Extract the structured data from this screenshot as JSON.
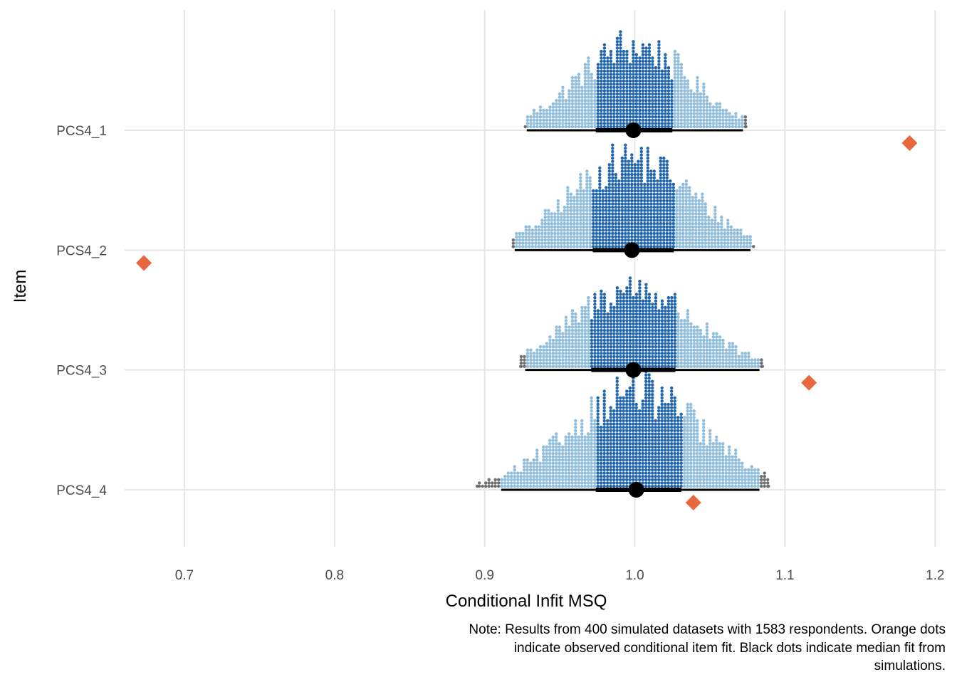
{
  "chart_data": {
    "type": "dotplot-interval",
    "xlabel": "Conditional Infit MSQ",
    "ylabel": "Item",
    "xlim": [
      0.65,
      1.21
    ],
    "x_ticks": [
      "0.7",
      "0.8",
      "0.9",
      "1.0",
      "1.1",
      "1.2"
    ],
    "x_tick_values": [
      0.7,
      0.8,
      0.9,
      1.0,
      1.1,
      1.2
    ],
    "categories": [
      "PCS4_1",
      "PCS4_2",
      "PCS4_3",
      "PCS4_4"
    ],
    "grid": true,
    "caption_lines": [
      "Note: Results from 400 simulated datasets with 1583 respondents. Orange dots",
      "indicate observed conditional item fit. Black dots indicate median fit from",
      "simulations."
    ],
    "colors": {
      "inner_dots": "#2166ac",
      "outer_dots": "#8fbddc",
      "extreme_dots": "#6e6e6e",
      "observed": "#e8673c",
      "median": "#000000",
      "grid": "#e6e6e6"
    },
    "items": [
      {
        "name": "PCS4_1",
        "median": 0.999,
        "interval_inner": [
          0.974,
          1.025
        ],
        "interval_outer": [
          0.928,
          1.072
        ],
        "sim_min": 0.927,
        "sim_max": 1.074,
        "observed": 1.183,
        "mode_height": 26
      },
      {
        "name": "PCS4_2",
        "median": 0.998,
        "interval_inner": [
          0.972,
          1.026
        ],
        "interval_outer": [
          0.92,
          1.077
        ],
        "sim_min": 0.919,
        "sim_max": 1.079,
        "observed": 0.673,
        "mode_height": 28
      },
      {
        "name": "PCS4_3",
        "median": 0.999,
        "interval_inner": [
          0.971,
          1.027
        ],
        "interval_outer": [
          0.927,
          1.083
        ],
        "sim_min": 0.924,
        "sim_max": 1.085,
        "observed": 1.116,
        "mode_height": 25
      },
      {
        "name": "PCS4_4",
        "median": 1.001,
        "interval_inner": [
          0.974,
          1.031
        ],
        "interval_outer": [
          0.911,
          1.083
        ],
        "sim_min": 0.895,
        "sim_max": 1.089,
        "observed": 1.039,
        "mode_height": 30
      }
    ]
  }
}
